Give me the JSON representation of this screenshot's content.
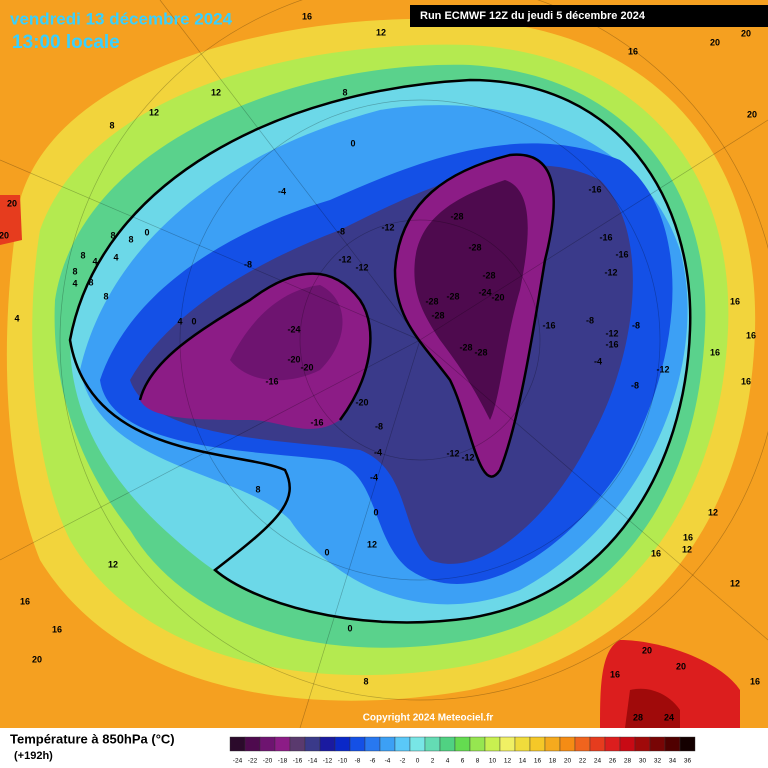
{
  "header": {
    "date": "vendredi 13 décembre 2024",
    "time": "13:00 locale",
    "run": "Run ECMWF 12Z du jeudi 5 décembre 2024"
  },
  "map": {
    "contour_labels": [
      -28,
      -28,
      -28,
      -24,
      -20,
      -28,
      -28,
      -28,
      -28,
      -28,
      -16,
      -16,
      -16,
      -16,
      -12,
      -8,
      -12,
      -16,
      -8,
      -4,
      -8,
      -12,
      -24,
      -20,
      -20,
      -16,
      -20,
      -16,
      -8,
      -4,
      -4,
      0,
      -12,
      -12,
      -8,
      -12,
      -12,
      -12,
      -8,
      -4,
      0,
      8,
      12,
      12,
      8,
      12,
      16,
      16,
      20,
      20,
      20,
      16,
      16,
      16,
      16,
      12,
      16,
      12,
      16,
      12,
      20,
      20,
      16,
      28,
      24,
      16,
      20,
      20,
      16,
      16,
      20,
      12,
      8,
      0,
      0,
      8,
      12,
      8,
      4,
      4,
      8,
      4,
      8,
      8,
      4,
      0,
      4,
      0,
      8,
      8
    ]
  },
  "copyright": "Copyright 2024 Meteociel.fr",
  "legend": {
    "title": "Température à 850hPa (°C)",
    "lead": "(+192h)",
    "ticks": [
      -24,
      -22,
      -20,
      -18,
      -16,
      -14,
      -12,
      -10,
      -8,
      -6,
      -4,
      -2,
      0,
      2,
      4,
      6,
      8,
      10,
      12,
      14,
      16,
      18,
      20,
      22,
      24,
      26,
      28,
      30,
      32,
      34,
      36
    ],
    "colors": [
      "#2b0a2b",
      "#4e0a4e",
      "#6e1470",
      "#8c1c86",
      "#5a3a6e",
      "#3a3a8a",
      "#1a1aa0",
      "#0a28c8",
      "#1450e6",
      "#2878f0",
      "#3ca0f5",
      "#5ac8f8",
      "#78e6e6",
      "#64dcb4",
      "#50d282",
      "#64dc50",
      "#96e650",
      "#c8f050",
      "#f0f064",
      "#f0dc3c",
      "#f5c828",
      "#f5aa1e",
      "#f58c14",
      "#f0641e",
      "#e63c1e",
      "#dc1e1e",
      "#c80a14",
      "#a00a0a",
      "#780505",
      "#500000",
      "#140000"
    ]
  }
}
